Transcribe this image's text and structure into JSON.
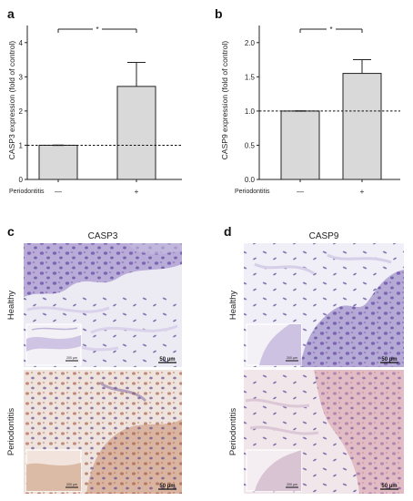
{
  "panels": {
    "a": "a",
    "b": "b",
    "c": "c",
    "d": "d"
  },
  "chart_data": [
    {
      "type": "bar",
      "panel": "a",
      "title": "",
      "ylabel": "CASP3 expression (fold of control)",
      "xlabel": "Periodontitis",
      "categories": [
        "—",
        "+"
      ],
      "values": [
        1.0,
        2.72
      ],
      "errors": [
        0.0,
        0.7
      ],
      "ylim": [
        0,
        4.5
      ],
      "yticks": [
        "0",
        "1",
        "2",
        "3",
        "4"
      ],
      "reference_line": 1.0,
      "significance": "*",
      "bar_color": "#d9d9d9",
      "grid": false
    },
    {
      "type": "bar",
      "panel": "b",
      "title": "",
      "ylabel": "CASP9 expression (fold of control)",
      "xlabel": "Periodontitis",
      "categories": [
        "—",
        "+"
      ],
      "values": [
        1.0,
        1.55
      ],
      "errors": [
        0.0,
        0.2
      ],
      "ylim": [
        0,
        2.25
      ],
      "yticks": [
        "0.0",
        "0.5",
        "1.0",
        "1.5",
        "2.0"
      ],
      "reference_line": 1.0,
      "significance": "*",
      "bar_color": "#d9d9d9",
      "grid": false
    }
  ],
  "micrographs": {
    "casp3_title": "CASP3",
    "casp9_title": "CASP9",
    "row_healthy": "Healthy",
    "row_periodontitis": "Periodontitis",
    "scale_bar": "50 µm",
    "inset_scale": "200 µm"
  }
}
